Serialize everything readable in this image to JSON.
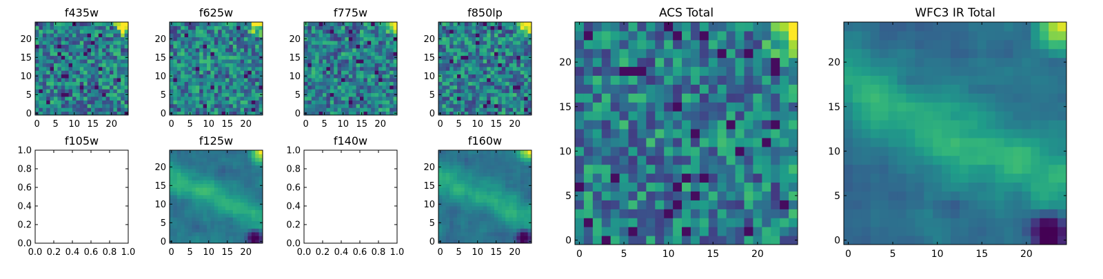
{
  "chart_data": [
    {
      "type": "heatmap",
      "title": "f435w",
      "xticks": [
        "0",
        "5",
        "10",
        "15",
        "20"
      ],
      "yticks": [
        "0",
        "5",
        "10",
        "15",
        "20"
      ],
      "xlim": [
        -0.5,
        24.5
      ],
      "ylim": [
        -0.5,
        24.5
      ],
      "grid": false,
      "colormap": "viridis",
      "pattern": "noise",
      "bright_corner": "top-right"
    },
    {
      "type": "heatmap",
      "title": "f625w",
      "xticks": [
        "0",
        "5",
        "10",
        "15",
        "20"
      ],
      "yticks": [
        "0",
        "5",
        "10",
        "15",
        "20"
      ],
      "xlim": [
        -0.5,
        24.5
      ],
      "ylim": [
        -0.5,
        24.5
      ],
      "grid": false,
      "colormap": "viridis",
      "pattern": "noise",
      "bright_corner": "top-right"
    },
    {
      "type": "heatmap",
      "title": "f775w",
      "xticks": [
        "0",
        "5",
        "10",
        "15",
        "20"
      ],
      "yticks": [
        "0",
        "5",
        "10",
        "15",
        "20"
      ],
      "xlim": [
        -0.5,
        24.5
      ],
      "ylim": [
        -0.5,
        24.5
      ],
      "grid": false,
      "colormap": "viridis",
      "pattern": "noise",
      "bright_corner": "top-right"
    },
    {
      "type": "heatmap",
      "title": "f850lp",
      "xticks": [
        "0",
        "5",
        "10",
        "15",
        "20"
      ],
      "yticks": [
        "0",
        "5",
        "10",
        "15",
        "20"
      ],
      "xlim": [
        -0.5,
        24.5
      ],
      "ylim": [
        -0.5,
        24.5
      ],
      "grid": false,
      "colormap": "viridis",
      "pattern": "noise",
      "bright_corner": "top-right"
    },
    {
      "type": "empty",
      "title": "f105w",
      "xticks": [
        "0.0",
        "0.2",
        "0.4",
        "0.6",
        "0.8",
        "1.0"
      ],
      "yticks": [
        "0.0",
        "0.2",
        "0.4",
        "0.6",
        "0.8",
        "1.0"
      ],
      "xlim": [
        0,
        1
      ],
      "ylim": [
        0,
        1
      ]
    },
    {
      "type": "heatmap",
      "title": "f125w",
      "xticks": [
        "0",
        "5",
        "10",
        "15",
        "20"
      ],
      "yticks": [
        "0",
        "5",
        "10",
        "15",
        "20"
      ],
      "xlim": [
        -0.5,
        24.5
      ],
      "ylim": [
        -0.5,
        24.5
      ],
      "grid": false,
      "colormap": "viridis",
      "pattern": "smooth-diagonal-band",
      "bright_corner": "top-right",
      "dark_corner": "bottom-right"
    },
    {
      "type": "empty",
      "title": "f140w",
      "xticks": [
        "0.0",
        "0.2",
        "0.4",
        "0.6",
        "0.8",
        "1.0"
      ],
      "yticks": [
        "0.0",
        "0.2",
        "0.4",
        "0.6",
        "0.8",
        "1.0"
      ],
      "xlim": [
        0,
        1
      ],
      "ylim": [
        0,
        1
      ]
    },
    {
      "type": "heatmap",
      "title": "f160w",
      "xticks": [
        "0",
        "5",
        "10",
        "15",
        "20"
      ],
      "yticks": [
        "0",
        "5",
        "10",
        "15",
        "20"
      ],
      "xlim": [
        -0.5,
        24.5
      ],
      "ylim": [
        -0.5,
        24.5
      ],
      "grid": false,
      "colormap": "viridis",
      "pattern": "smooth-diagonal-band",
      "bright_corner": "top-right",
      "dark_corner": "bottom-right"
    },
    {
      "type": "heatmap",
      "title": "ACS Total",
      "xticks": [
        "0",
        "5",
        "10",
        "15",
        "20"
      ],
      "yticks": [
        "0",
        "5",
        "10",
        "15",
        "20"
      ],
      "xlim": [
        -0.5,
        24.5
      ],
      "ylim": [
        -0.5,
        24.5
      ],
      "grid": false,
      "colormap": "viridis",
      "pattern": "noise",
      "bright_corner": "top-right"
    },
    {
      "type": "heatmap",
      "title": "WFC3 IR Total",
      "xticks": [
        "0",
        "5",
        "10",
        "15",
        "20"
      ],
      "yticks": [
        "0",
        "5",
        "10",
        "15",
        "20"
      ],
      "xlim": [
        -0.5,
        24.5
      ],
      "ylim": [
        -0.5,
        24.5
      ],
      "grid": false,
      "colormap": "viridis",
      "pattern": "smooth-diagonal-band",
      "bright_corner": "top-right",
      "dark_corner": "bottom-right"
    }
  ]
}
